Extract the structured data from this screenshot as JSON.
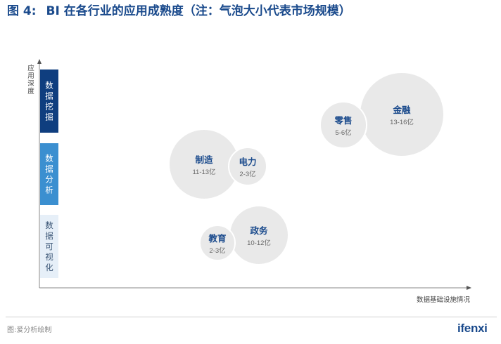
{
  "header": {
    "figure_label": "图 4:",
    "title": "BI 在各行业的应用成熟度（注：气泡大小代表市场规模）"
  },
  "chart_data": {
    "type": "bubble",
    "y_axis_label": "应用深度",
    "x_axis_label": "数据基础设施情况",
    "y_levels": [
      {
        "label": "数据挖掘",
        "color": "#0f3e7f",
        "text_color": "#ffffff"
      },
      {
        "label": "数据分析",
        "color": "#3b8fd0",
        "text_color": "#ffffff"
      },
      {
        "label": "数据可视化",
        "color": "#e6eff8",
        "text_color": "#3a5575"
      }
    ],
    "bubble_color": "#e9e9e9",
    "bubbles": [
      {
        "name": "金融",
        "value": "13-16亿"
      },
      {
        "name": "零售",
        "value": "5-6亿"
      },
      {
        "name": "制造",
        "value": "11-13亿"
      },
      {
        "name": "电力",
        "value": "2-3亿"
      },
      {
        "name": "政务",
        "value": "10-12亿"
      },
      {
        "name": "教育",
        "value": "2-3亿"
      }
    ]
  },
  "footer": {
    "source": "图:爱分析绘制",
    "logo": "ifenxi"
  }
}
